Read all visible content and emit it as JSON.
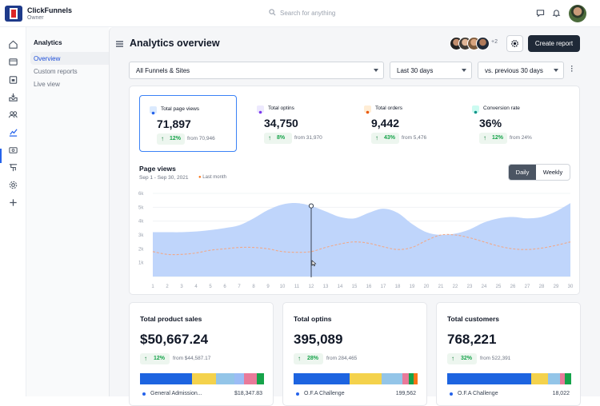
{
  "app": {
    "brand": "ClickFunnels",
    "role": "Owner",
    "search_placeholder": "Search for anything"
  },
  "subnav": {
    "heading": "Analytics",
    "items": [
      {
        "label": "Overview",
        "active": true
      },
      {
        "label": "Custom reports"
      },
      {
        "label": "Live view"
      }
    ]
  },
  "page": {
    "title": "Analytics overview",
    "extra_users": "+2",
    "create_label": "Create report"
  },
  "filters": {
    "funnels": "All Funnels & Sites",
    "range": "Last 30 days",
    "compare": "vs. previous 30 days"
  },
  "stats": [
    {
      "label": "Total page views",
      "value": "71,897",
      "change": "12%",
      "from": "from 70,946",
      "icon_color": "#2563eb"
    },
    {
      "label": "Total optins",
      "value": "34,750",
      "change": "8%",
      "from": "from 31,970",
      "icon_color": "#7c3aed"
    },
    {
      "label": "Total orders",
      "value": "9,442",
      "change": "43%",
      "from": "from 5,476",
      "icon_color": "#ea580c"
    },
    {
      "label": "Conversion rate",
      "value": "36%",
      "change": "12%",
      "from": "from 24%",
      "icon_color": "#0d9488"
    }
  ],
  "page_views": {
    "title": "Page views",
    "dates": "Sep 1 - Sep 30, 2021",
    "legend_last": "Last month",
    "toggle_daily": "Daily",
    "toggle_weekly": "Weekly"
  },
  "chart_data": {
    "type": "area",
    "title": "Page views",
    "x": [
      1,
      2,
      3,
      4,
      5,
      6,
      7,
      8,
      9,
      10,
      11,
      12,
      13,
      14,
      15,
      16,
      17,
      18,
      19,
      20,
      21,
      22,
      23,
      24,
      25,
      26,
      27,
      28,
      29,
      30
    ],
    "y_ticks": [
      "1k",
      "2k",
      "3k",
      "4k",
      "5k",
      "6k"
    ],
    "ylim": [
      0,
      6000
    ],
    "series": [
      {
        "values": [
          3200,
          3200,
          3200,
          3250,
          3350,
          3500,
          3700,
          4200,
          4800,
          5200,
          5300,
          5100,
          4700,
          4300,
          4200,
          4600,
          4900,
          4600,
          3800,
          3200,
          3000,
          3100,
          3400,
          3900,
          4200,
          4300,
          4200,
          4300,
          4700,
          5300
        ],
        "color": "#bfd5fb"
      },
      {
        "name": "Last month",
        "values": [
          1800,
          1600,
          1600,
          1700,
          1900,
          2000,
          2100,
          2100,
          2000,
          1800,
          1750,
          1800,
          2100,
          2350,
          2500,
          2400,
          2150,
          1950,
          2100,
          2600,
          3000,
          3000,
          2800,
          2500,
          2200,
          2000,
          1950,
          2050,
          2250,
          2500
        ],
        "color": "#f0a98a"
      }
    ],
    "hover_x": 12
  },
  "bottom": [
    {
      "title": "Total product sales",
      "value": "$50,667.24",
      "change": "12%",
      "from": "from $44,587.17",
      "legend_name": "General Admission...",
      "legend_value": "$18,347.83",
      "segments": [
        {
          "v": 42,
          "c": "#1d64e0"
        },
        {
          "v": 19,
          "c": "#f4d24c"
        },
        {
          "v": 15,
          "c": "#93c5e8"
        },
        {
          "v": 8,
          "c": "#9bbcf5"
        },
        {
          "v": 10,
          "c": "#e97a9a"
        },
        {
          "v": 6,
          "c": "#16a34a"
        }
      ]
    },
    {
      "title": "Total optins",
      "value": "395,089",
      "change": "28%",
      "from": "from 284,465",
      "legend_name": "O.F.A Challenge",
      "legend_value": "199,562",
      "segments": [
        {
          "v": 45,
          "c": "#1d64e0"
        },
        {
          "v": 26,
          "c": "#f4d24c"
        },
        {
          "v": 17,
          "c": "#93c5e8"
        },
        {
          "v": 5,
          "c": "#e97a9a"
        },
        {
          "v": 4,
          "c": "#16a34a"
        },
        {
          "v": 3,
          "c": "#f97316"
        }
      ]
    },
    {
      "title": "Total customers",
      "value": "768,221",
      "change": "32%",
      "from": "from 522,391",
      "legend_name": "O.F.A Challenge",
      "legend_value": "18,022",
      "segments": [
        {
          "v": 68,
          "c": "#1d64e0"
        },
        {
          "v": 13,
          "c": "#f4d24c"
        },
        {
          "v": 10,
          "c": "#93c5e8"
        },
        {
          "v": 4,
          "c": "#e97a9a"
        },
        {
          "v": 5,
          "c": "#16a34a"
        }
      ]
    }
  ]
}
